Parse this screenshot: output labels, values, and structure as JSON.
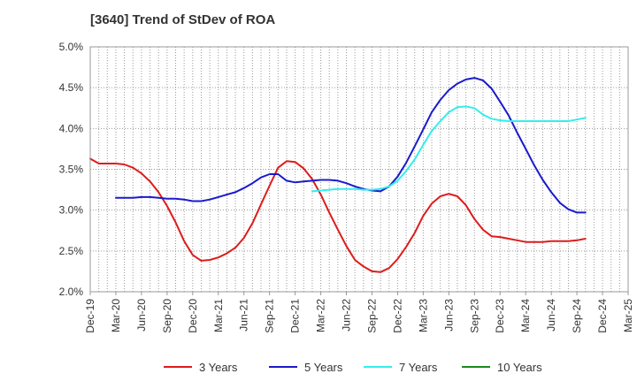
{
  "chart_data": {
    "type": "line",
    "title": "[3640]  Trend of StDev of ROA",
    "xlabel": "",
    "ylabel": "",
    "ylim": [
      0.02,
      0.05
    ],
    "y_ticks": [
      0.02,
      0.025,
      0.03,
      0.035,
      0.04,
      0.045,
      0.05
    ],
    "y_tick_labels": [
      "2.0%",
      "2.5%",
      "3.0%",
      "3.5%",
      "4.0%",
      "4.5%",
      "5.0%"
    ],
    "x_ticks": [
      "Dec-19",
      "Mar-20",
      "Jun-20",
      "Sep-20",
      "Dec-20",
      "Mar-21",
      "Jun-21",
      "Sep-21",
      "Dec-21",
      "Mar-22",
      "Jun-22",
      "Sep-22",
      "Dec-22",
      "Mar-23",
      "Jun-23",
      "Sep-23",
      "Dec-23",
      "Mar-24",
      "Jun-24",
      "Sep-24",
      "Dec-24",
      "Mar-25"
    ],
    "grid": true,
    "legend_position": "bottom",
    "series": [
      {
        "name": "3 Years",
        "color": "#dd1c1c",
        "points": [
          [
            0,
            0.0363
          ],
          [
            1,
            0.0357
          ],
          [
            2,
            0.0357
          ],
          [
            3,
            0.0357
          ],
          [
            4,
            0.0356
          ],
          [
            5,
            0.0352
          ],
          [
            6,
            0.0345
          ],
          [
            7,
            0.0335
          ],
          [
            8,
            0.0322
          ],
          [
            9,
            0.0305
          ],
          [
            10,
            0.0285
          ],
          [
            11,
            0.0262
          ],
          [
            12,
            0.0245
          ],
          [
            13,
            0.0238
          ],
          [
            14,
            0.0239
          ],
          [
            15,
            0.0242
          ],
          [
            16,
            0.0247
          ],
          [
            17,
            0.0254
          ],
          [
            18,
            0.0266
          ],
          [
            19,
            0.0284
          ],
          [
            20,
            0.0307
          ],
          [
            21,
            0.033
          ],
          [
            22,
            0.0352
          ],
          [
            23,
            0.036
          ],
          [
            24,
            0.0359
          ],
          [
            25,
            0.0351
          ],
          [
            26,
            0.0338
          ],
          [
            27,
            0.0319
          ],
          [
            28,
            0.0297
          ],
          [
            29,
            0.0276
          ],
          [
            30,
            0.0256
          ],
          [
            31,
            0.0239
          ],
          [
            32,
            0.0231
          ],
          [
            33,
            0.0225
          ],
          [
            34,
            0.0224
          ],
          [
            35,
            0.0229
          ],
          [
            36,
            0.024
          ],
          [
            37,
            0.0255
          ],
          [
            38,
            0.0272
          ],
          [
            39,
            0.0293
          ],
          [
            40,
            0.0308
          ],
          [
            41,
            0.0317
          ],
          [
            42,
            0.032
          ],
          [
            43,
            0.0317
          ],
          [
            44,
            0.0306
          ],
          [
            45,
            0.0289
          ],
          [
            46,
            0.0276
          ],
          [
            47,
            0.0268
          ],
          [
            48,
            0.0267
          ],
          [
            49,
            0.0265
          ],
          [
            50,
            0.0263
          ],
          [
            51,
            0.0261
          ],
          [
            52,
            0.0261
          ],
          [
            53,
            0.0261
          ],
          [
            54,
            0.0262
          ],
          [
            55,
            0.0262
          ],
          [
            56,
            0.0262
          ],
          [
            57,
            0.0263
          ],
          [
            58,
            0.0265
          ]
        ]
      },
      {
        "name": "5 Years",
        "color": "#1a1acc",
        "points": [
          [
            3,
            0.0315
          ],
          [
            4,
            0.0315
          ],
          [
            5,
            0.0315
          ],
          [
            6,
            0.0316
          ],
          [
            7,
            0.0316
          ],
          [
            8,
            0.0315
          ],
          [
            9,
            0.0314
          ],
          [
            10,
            0.0314
          ],
          [
            11,
            0.0313
          ],
          [
            12,
            0.0311
          ],
          [
            13,
            0.0311
          ],
          [
            14,
            0.0313
          ],
          [
            15,
            0.0316
          ],
          [
            16,
            0.0319
          ],
          [
            17,
            0.0322
          ],
          [
            18,
            0.0327
          ],
          [
            19,
            0.0333
          ],
          [
            20,
            0.034
          ],
          [
            21,
            0.0344
          ],
          [
            22,
            0.0344
          ],
          [
            23,
            0.0336
          ],
          [
            24,
            0.0334
          ],
          [
            25,
            0.0335
          ],
          [
            26,
            0.0336
          ],
          [
            27,
            0.0337
          ],
          [
            28,
            0.0337
          ],
          [
            29,
            0.0336
          ],
          [
            30,
            0.0333
          ],
          [
            31,
            0.0329
          ],
          [
            32,
            0.0326
          ],
          [
            33,
            0.0324
          ],
          [
            34,
            0.0323
          ],
          [
            35,
            0.0329
          ],
          [
            36,
            0.0341
          ],
          [
            37,
            0.0358
          ],
          [
            38,
            0.0378
          ],
          [
            39,
            0.0399
          ],
          [
            40,
            0.042
          ],
          [
            41,
            0.0435
          ],
          [
            42,
            0.0447
          ],
          [
            43,
            0.0455
          ],
          [
            44,
            0.046
          ],
          [
            45,
            0.0462
          ],
          [
            46,
            0.0459
          ],
          [
            47,
            0.0449
          ],
          [
            48,
            0.0433
          ],
          [
            49,
            0.0416
          ],
          [
            50,
            0.0395
          ],
          [
            51,
            0.0375
          ],
          [
            52,
            0.0355
          ],
          [
            53,
            0.0337
          ],
          [
            54,
            0.0322
          ],
          [
            55,
            0.0309
          ],
          [
            56,
            0.0301
          ],
          [
            57,
            0.0297
          ],
          [
            58,
            0.0297
          ]
        ]
      },
      {
        "name": "7 Years",
        "color": "#33eeee",
        "points": [
          [
            26,
            0.0323
          ],
          [
            27,
            0.0324
          ],
          [
            28,
            0.0325
          ],
          [
            29,
            0.0326
          ],
          [
            30,
            0.0326
          ],
          [
            31,
            0.0326
          ],
          [
            32,
            0.0325
          ],
          [
            33,
            0.0325
          ],
          [
            34,
            0.0326
          ],
          [
            35,
            0.0329
          ],
          [
            36,
            0.0336
          ],
          [
            37,
            0.0348
          ],
          [
            38,
            0.0362
          ],
          [
            39,
            0.038
          ],
          [
            40,
            0.0397
          ],
          [
            41,
            0.0409
          ],
          [
            42,
            0.042
          ],
          [
            43,
            0.0426
          ],
          [
            44,
            0.0427
          ],
          [
            45,
            0.0425
          ],
          [
            46,
            0.0417
          ],
          [
            47,
            0.0412
          ],
          [
            48,
            0.041
          ],
          [
            49,
            0.0409
          ],
          [
            50,
            0.0409
          ],
          [
            51,
            0.0409
          ],
          [
            52,
            0.0409
          ],
          [
            53,
            0.0409
          ],
          [
            54,
            0.0409
          ],
          [
            55,
            0.0409
          ],
          [
            56,
            0.0409
          ],
          [
            57,
            0.0411
          ],
          [
            58,
            0.0413
          ]
        ]
      },
      {
        "name": "10 Years",
        "color": "#1a8c1a",
        "points": []
      }
    ]
  }
}
